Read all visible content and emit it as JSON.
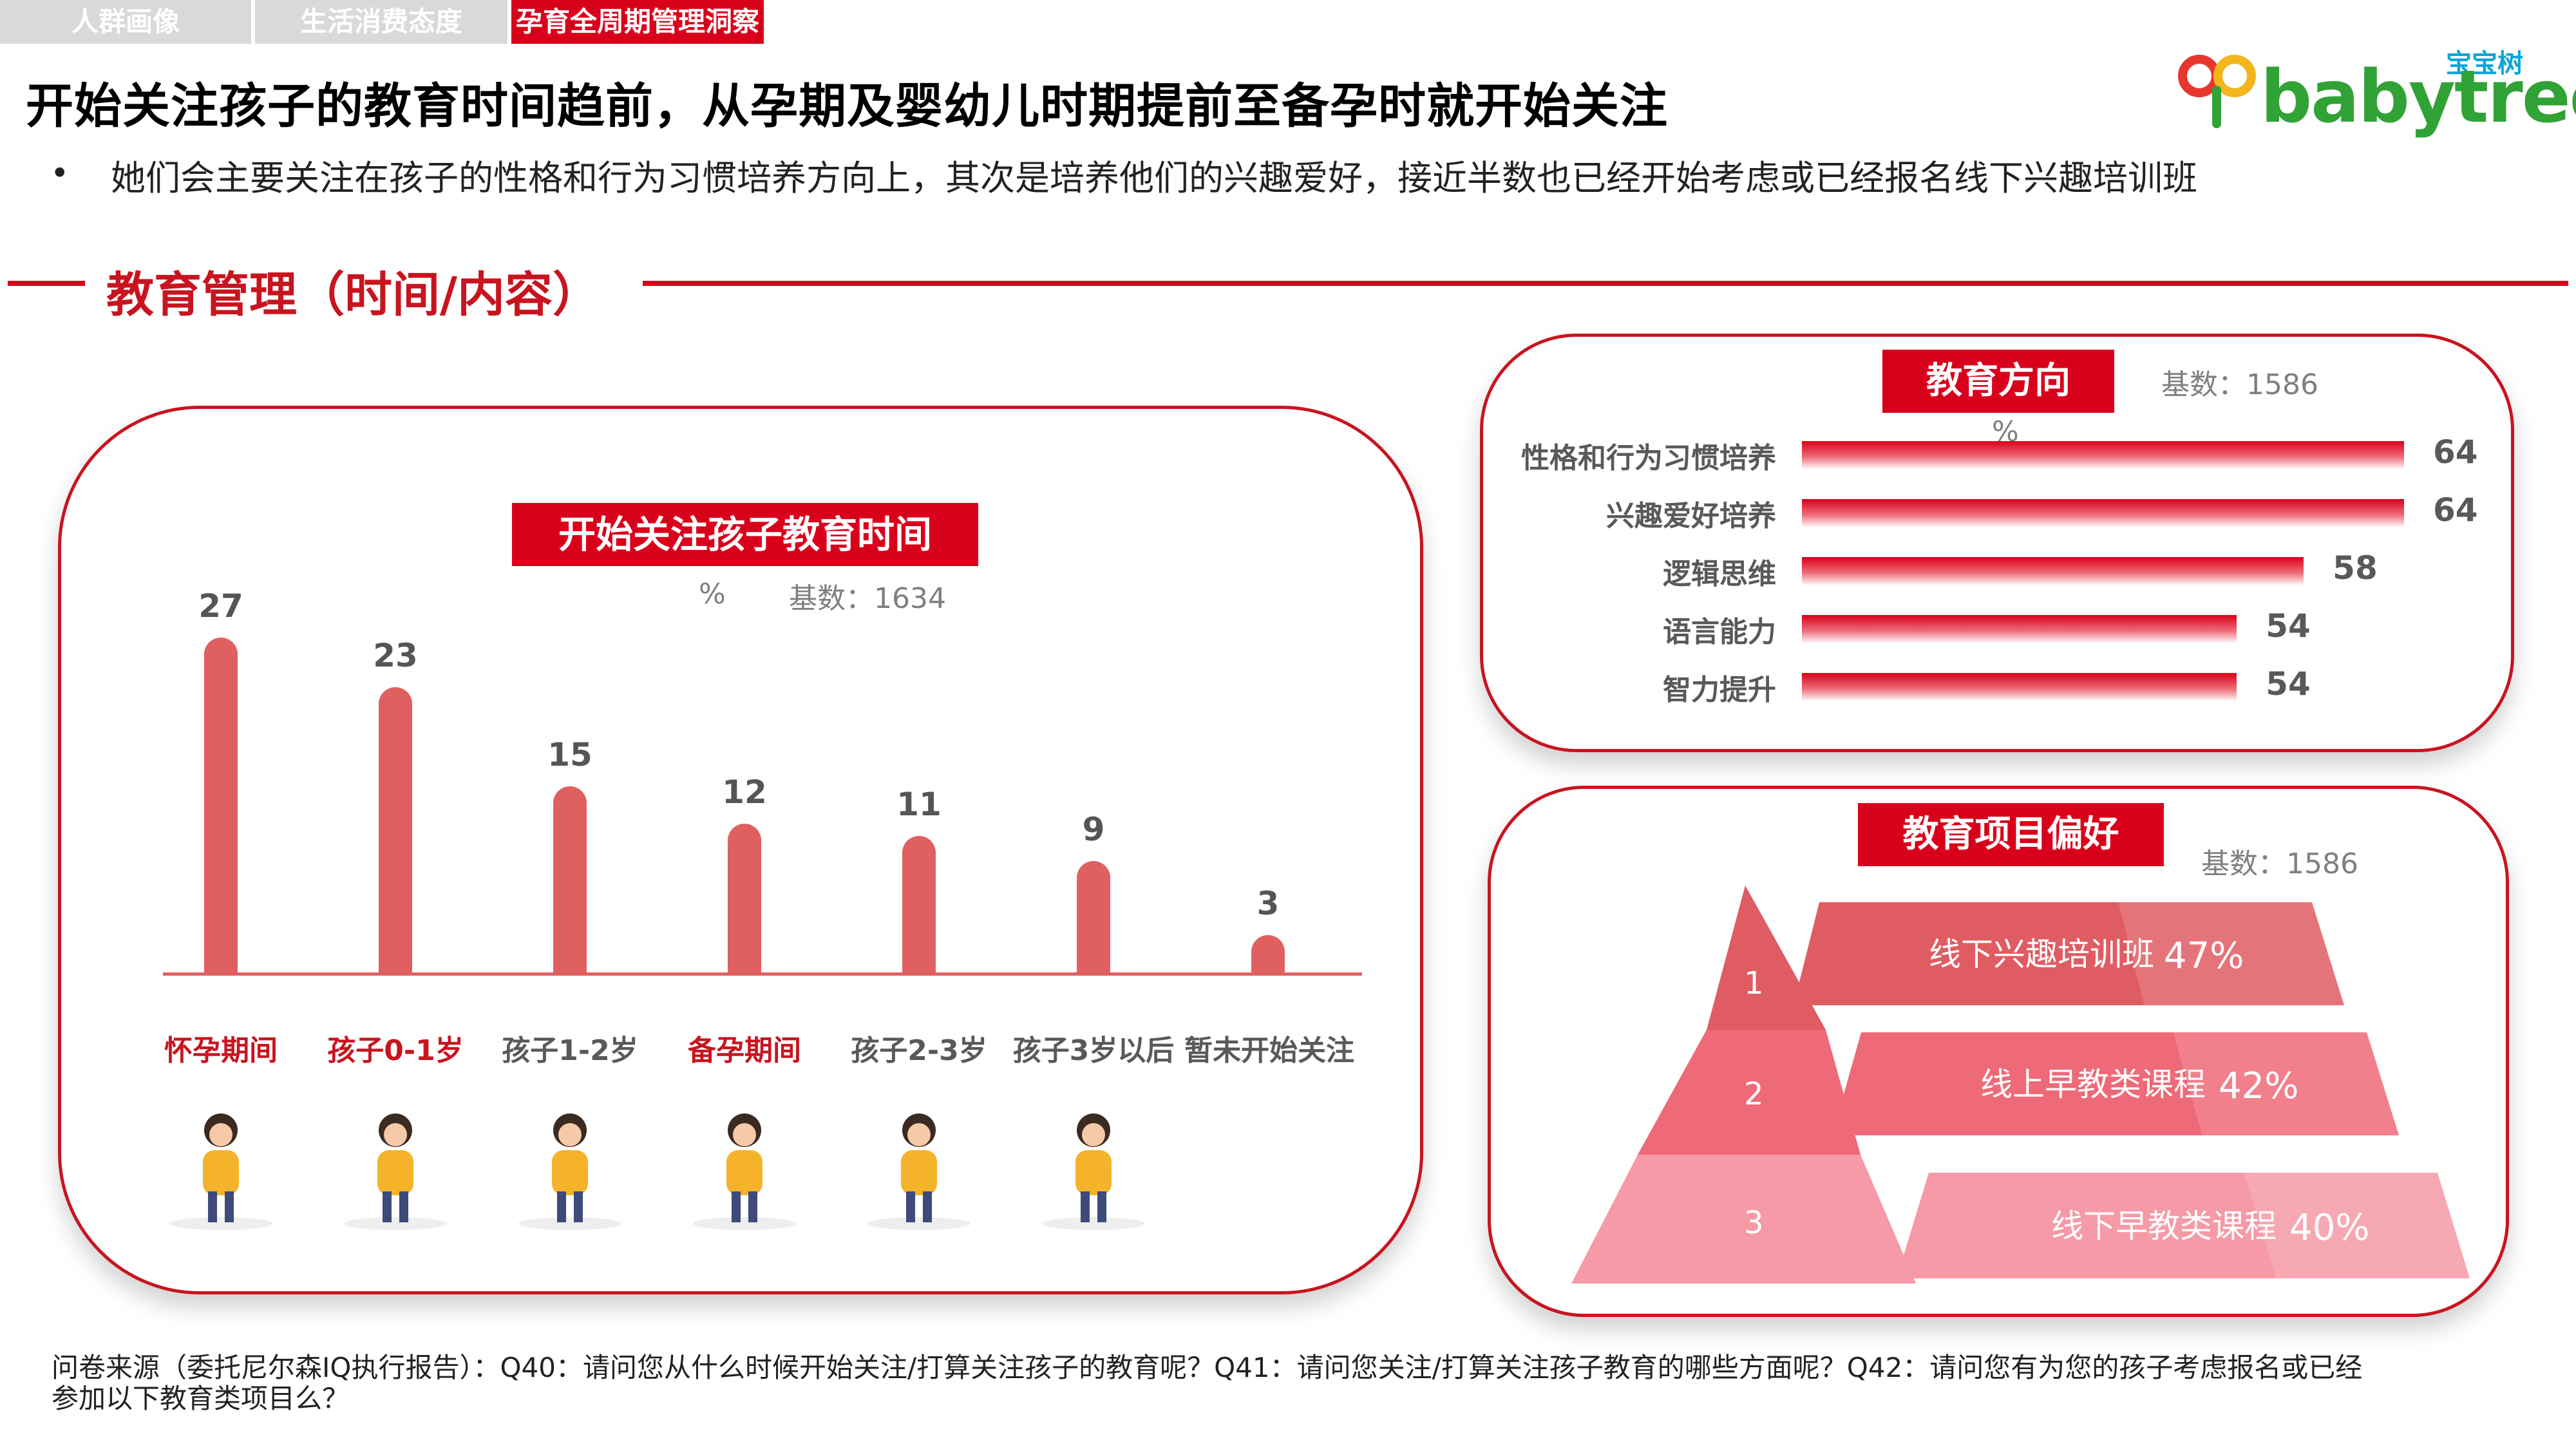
{
  "tabs": [
    {
      "label": "人群画像",
      "active": false
    },
    {
      "label": "生活消费态度",
      "active": false
    },
    {
      "label": "孕育全周期管理洞察",
      "active": true
    }
  ],
  "title": "开始关注孩子的教育时间趋前，从孕期及婴幼儿时期提前至备孕时就开始关注",
  "bullet": "她们会主要关注在孩子的性格和行为习惯培养方向上，其次是培养他们的兴趣爱好，接近半数也已经开始考虑或已经报名线下兴趣培训班",
  "logo": {
    "cn": "宝宝树",
    "en": "babytree"
  },
  "section": {
    "title": "教育管理（时间/内容）"
  },
  "colors": {
    "accent": "#d9001b",
    "bar": "#e06060",
    "pyramid": [
      "#e05c63",
      "#ee6a78",
      "#f59aa6"
    ]
  },
  "left_panel": {
    "pill": "开始关注孩子教育时间",
    "unit": "%",
    "base": "基数：1634"
  },
  "right_top": {
    "pill": "教育方向",
    "unit": "%",
    "base": "基数：1586"
  },
  "right_bottom": {
    "pill": "教育项目偏好",
    "base": "基数：1586"
  },
  "chart_data": [
    {
      "type": "bar",
      "title": "开始关注孩子教育时间",
      "categories": [
        "怀孕期间",
        "孩子0-1岁",
        "孩子1-2岁",
        "备孕期间",
        "孩子2-3岁",
        "孩子3岁以后",
        "暂未开始关注"
      ],
      "values": [
        27,
        23,
        15,
        12,
        11,
        9,
        3
      ],
      "highlight": [
        true,
        true,
        false,
        true,
        false,
        false,
        false
      ],
      "unit": "%",
      "ylim": [
        0,
        30
      ]
    },
    {
      "type": "bar",
      "orientation": "horizontal",
      "title": "教育方向",
      "categories": [
        "性格和行为习惯培养",
        "兴趣爱好培养",
        "逻辑思维",
        "语言能力",
        "智力提升"
      ],
      "values": [
        64,
        64,
        58,
        54,
        54
      ],
      "unit": "%"
    },
    {
      "type": "bar",
      "title": "教育项目偏好",
      "categories": [
        "线下兴趣培训班",
        "线上早教类课程",
        "线下早教类课程"
      ],
      "ranks": [
        "1",
        "2",
        "3"
      ],
      "values": [
        47,
        42,
        40
      ],
      "value_labels": [
        "47%",
        "42%",
        "40%"
      ],
      "unit": "%"
    }
  ],
  "footnote": "问卷来源（委托尼尔森IQ执行报告）：Q40：请问您从什么时候开始关注/打算关注孩子的教育呢？Q41：请问您关注/打算关注孩子教育的哪些方面呢？Q42：请问您有为您的孩子考虑报名或已经参加以下教育类项目么？"
}
